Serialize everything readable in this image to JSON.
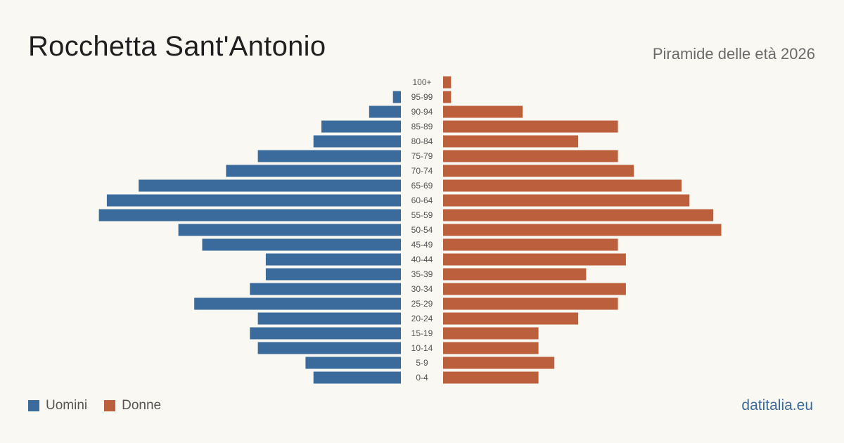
{
  "header": {
    "title": "Rocchetta Sant'Antonio",
    "subtitle": "Piramide delle età 2026"
  },
  "legend": {
    "men_label": "Uomini",
    "women_label": "Donne"
  },
  "brand": "datitalia.eu",
  "colors": {
    "men": "#3b6b9c",
    "women": "#bc5f3d",
    "background": "#faf8f3"
  },
  "chart_data": {
    "type": "bar",
    "orientation": "horizontal-pyramid",
    "categories": [
      "100+",
      "95-99",
      "90-94",
      "85-89",
      "80-84",
      "75-79",
      "70-74",
      "65-69",
      "60-64",
      "55-59",
      "50-54",
      "45-49",
      "40-44",
      "35-39",
      "30-34",
      "25-29",
      "20-24",
      "15-19",
      "10-14",
      "5-9",
      "0-4"
    ],
    "series": [
      {
        "name": "Uomini",
        "values": [
          0,
          1,
          4,
          10,
          11,
          18,
          22,
          33,
          37,
          38,
          28,
          25,
          17,
          17,
          19,
          26,
          18,
          19,
          18,
          12,
          11
        ]
      },
      {
        "name": "Donne",
        "values": [
          1,
          1,
          10,
          22,
          17,
          22,
          24,
          30,
          31,
          34,
          35,
          22,
          23,
          18,
          23,
          22,
          17,
          12,
          12,
          14,
          12
        ]
      }
    ],
    "xlabel": "",
    "ylabel": "",
    "grid": false,
    "legend_position": "bottom-left"
  }
}
